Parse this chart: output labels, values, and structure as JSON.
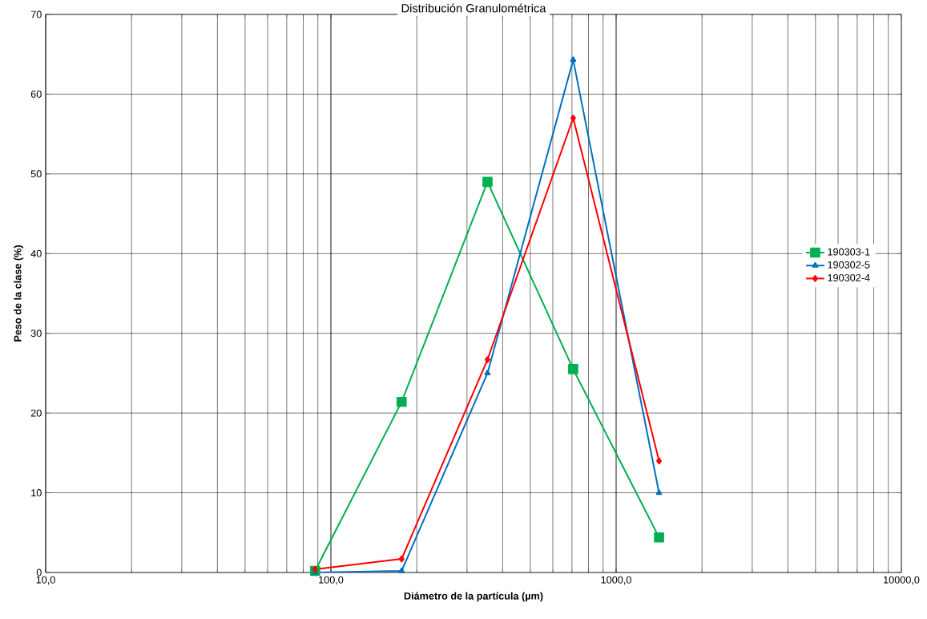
{
  "chart_data": {
    "type": "line",
    "title": "Distribución Granulométrica",
    "xlabel": "Diámetro de la partícula (µm)",
    "ylabel": "Peso de la clase (%)",
    "log": "x",
    "xlim": [
      10,
      10000
    ],
    "xticks": [
      {
        "value": 10,
        "label": "10,0"
      },
      {
        "value": 100,
        "label": "100,0"
      },
      {
        "value": 1000,
        "label": "1000,0"
      },
      {
        "value": 10000,
        "label": "10000,0"
      }
    ],
    "ylim": [
      0,
      70
    ],
    "yticks": [
      0,
      10,
      20,
      30,
      40,
      50,
      60,
      70
    ],
    "grid": true,
    "legend": "right",
    "line_style": "solid",
    "x": [
      88,
      177,
      354,
      707,
      1414
    ],
    "series": [
      {
        "name": "190303-1",
        "color": "#00b050",
        "marker": "square",
        "values": [
          0.2,
          21.4,
          49,
          25.5,
          4.4
        ]
      },
      {
        "name": "190302-5",
        "color": "#0070c0",
        "marker": "triangle",
        "values": [
          0,
          0.2,
          25,
          64.3,
          10
        ]
      },
      {
        "name": "190302-4",
        "color": "#ff0000",
        "marker": "diamond",
        "values": [
          0.4,
          1.7,
          26.7,
          57,
          14
        ]
      }
    ]
  }
}
